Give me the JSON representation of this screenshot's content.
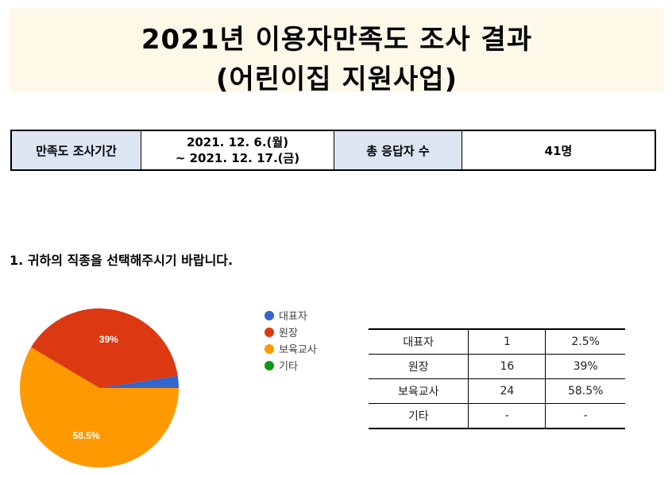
{
  "title": {
    "line1": "2021년 이용자만족도 조사 결과",
    "line2": "(어린이집 지원사업)"
  },
  "info": {
    "period_label": "만족도 조사기간",
    "period_start": "2021. 12. 6.(월)",
    "period_end": "~ 2021. 12. 17.(금)",
    "respondents_label": "총 응답자 수",
    "respondents_value": "41명"
  },
  "question": "1. 귀하의 직종을 선택해주시기 바랍니다.",
  "chart_data": {
    "type": "pie",
    "categories": [
      "대표자",
      "원장",
      "보육교사",
      "기타"
    ],
    "values": [
      1,
      16,
      24,
      0
    ],
    "percentages": [
      2.5,
      39,
      58.5,
      0
    ],
    "slice_labels": [
      "",
      "39%",
      "58.5%",
      ""
    ],
    "colors": [
      "#3366cc",
      "#dc3912",
      "#ff9900",
      "#109618"
    ],
    "legend_position": "right"
  },
  "table": {
    "rows": [
      [
        "대표자",
        "1",
        "2.5%"
      ],
      [
        "원장",
        "16",
        "39%"
      ],
      [
        "보육교사",
        "24",
        "58.5%"
      ],
      [
        "기타",
        "-",
        "-"
      ]
    ]
  }
}
